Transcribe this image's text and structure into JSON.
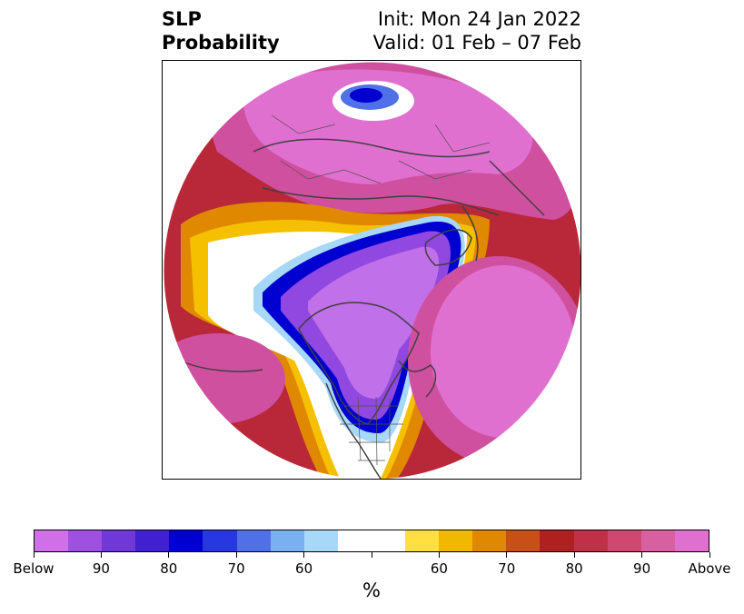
{
  "title": {
    "left_line1": "SLP",
    "left_line2": "Probability",
    "right_line1": "Init: Mon 24 Jan 2022",
    "right_line2": "Valid: 01 Feb – 07 Feb"
  },
  "colorbar": {
    "colors": [
      "#d070e8",
      "#a050e0",
      "#7038d8",
      "#4020d0",
      "#0000d0",
      "#2838e0",
      "#5070e8",
      "#78b0f0",
      "#a8d8f8",
      "#ffffff",
      "#ffffff",
      "#ffe040",
      "#f0b800",
      "#e08800",
      "#c85018",
      "#b02020",
      "#c03048",
      "#d04870",
      "#d860a0",
      "#e070d0"
    ],
    "tick_labels": [
      "Below",
      "90",
      "80",
      "70",
      "60",
      "",
      "60",
      "70",
      "80",
      "90",
      "Above"
    ],
    "unit": "%"
  },
  "map": {
    "projection": "north-polar-stereographic",
    "colors": {
      "above_high": "#e070d0",
      "above_mid": "#d050a0",
      "above_red": "#b82838",
      "above_orange": "#e08800",
      "above_yellow": "#f5c000",
      "below_light": "#a8d8f8",
      "below_blue": "#0000d0",
      "below_purple": "#9048e0",
      "below_deep": "#c070e8",
      "coast": "#404040"
    }
  }
}
